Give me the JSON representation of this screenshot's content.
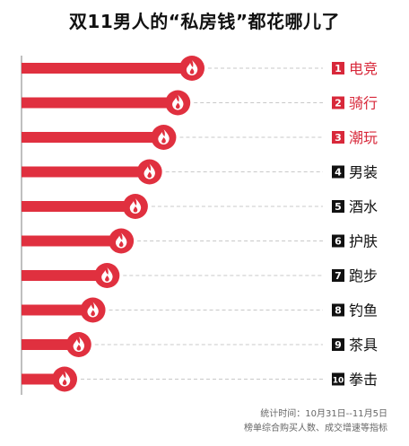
{
  "title": "双11男人的“私房钱”都花哪儿了",
  "colors": {
    "bar": "#e0303f",
    "highlight_text": "#d8283a",
    "normal_text": "#111111",
    "rank_badge_top": "#d8283a",
    "rank_badge_other": "#111111",
    "dash": "#c8c8c8",
    "axis": "#aaaaaa"
  },
  "chart_data": {
    "type": "bar",
    "orientation": "horizontal",
    "title": "双11男人的“私房钱”都花哪儿了",
    "categories": [
      "电竞",
      "骑行",
      "潮玩",
      "男装",
      "酒水",
      "护肤",
      "跑步",
      "钓鱼",
      "茶具",
      "拳击"
    ],
    "ranks": [
      "1",
      "2",
      "3",
      "4",
      "5",
      "6",
      "7",
      "8",
      "9",
      "10"
    ],
    "values": [
      10,
      9,
      8,
      7,
      6,
      5,
      4,
      3,
      2,
      1
    ],
    "marker_icon": "flame-icon",
    "highlight_top": 3,
    "grid": false,
    "legend": "none"
  },
  "footer": {
    "line1": "统计时间：10月31日--11月5日",
    "line2": "榜单综合购买人数、成交增速等指标"
  }
}
